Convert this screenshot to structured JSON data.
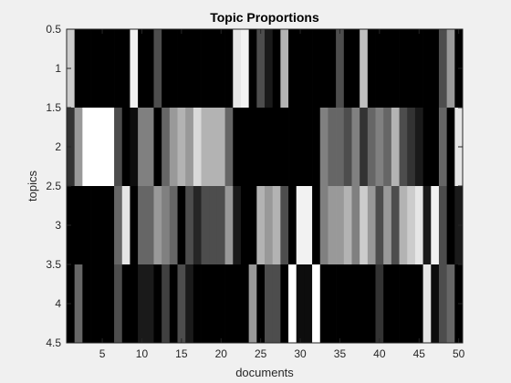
{
  "chart_data": {
    "type": "heatmap",
    "title": "Topic Proportions",
    "xlabel": "documents",
    "ylabel": "topics",
    "x_range": [
      0.5,
      50.5
    ],
    "y_range": [
      0.5,
      4.5
    ],
    "x_ticks": [
      5,
      10,
      15,
      20,
      25,
      30,
      35,
      40,
      45,
      50
    ],
    "y_ticks": [
      0.5,
      1,
      1.5,
      2,
      2.5,
      3,
      3.5,
      4,
      4.5
    ],
    "y_tick_labels": [
      "0.5",
      "1",
      "1.5",
      "2",
      "2.5",
      "3",
      "3.5",
      "4",
      "4.5"
    ],
    "colormap": "gray",
    "color_limits": [
      0,
      1
    ],
    "grid": false,
    "documents": 50,
    "topics": [
      1,
      2,
      3,
      4
    ],
    "values": [
      [
        0.8,
        0,
        0,
        0,
        0,
        0,
        0,
        0,
        0.95,
        0,
        0,
        0.3,
        0,
        0,
        0,
        0,
        0,
        0,
        0,
        0,
        0,
        0.9,
        0.95,
        0,
        0.3,
        0.1,
        0,
        0.7,
        0,
        0,
        0,
        0,
        0,
        0,
        0.3,
        0,
        0,
        0.75,
        0,
        0,
        0,
        0,
        0,
        0,
        0,
        0,
        0,
        0.3,
        0.6,
        0
      ],
      [
        0.2,
        0.6,
        1,
        1,
        1,
        1,
        0.3,
        0,
        0.05,
        0.5,
        0.5,
        0,
        0.4,
        0.6,
        0.7,
        0.6,
        0.85,
        0.7,
        0.7,
        0.7,
        0.4,
        0,
        0,
        0,
        0,
        0,
        0,
        0,
        0,
        0,
        0,
        0,
        0.5,
        0.4,
        0.4,
        0.3,
        0.5,
        0.2,
        0.4,
        0.5,
        0.4,
        0.7,
        0.3,
        0.2,
        0.1,
        0,
        0,
        0.4,
        0,
        0.9
      ],
      [
        0,
        0,
        0,
        0,
        0,
        0,
        0.4,
        0.9,
        0,
        0.4,
        0.4,
        0.6,
        0.5,
        0.4,
        0,
        0.3,
        0.15,
        0.3,
        0.3,
        0.3,
        0.6,
        0.1,
        0,
        0,
        0.7,
        0.6,
        0.7,
        0.3,
        0,
        0.95,
        0.95,
        0,
        0.5,
        0.6,
        0.6,
        0.7,
        0.5,
        0.8,
        0.6,
        0.3,
        0.6,
        0.3,
        0.7,
        0.8,
        0.9,
        0.1,
        0.95,
        0.3,
        0,
        0.1
      ],
      [
        0,
        0.4,
        0,
        0,
        0,
        0,
        0.3,
        0,
        0,
        0.1,
        0.1,
        0,
        0.25,
        0,
        0.3,
        0.1,
        0,
        0,
        0,
        0,
        0,
        0,
        0,
        0.6,
        0,
        0.3,
        0.3,
        0,
        1,
        0.05,
        0.05,
        1,
        0,
        0,
        0,
        0,
        0,
        0,
        0,
        0.2,
        0,
        0,
        0,
        0,
        0,
        0.9,
        0.05,
        0.3,
        0.4,
        0
      ]
    ]
  }
}
